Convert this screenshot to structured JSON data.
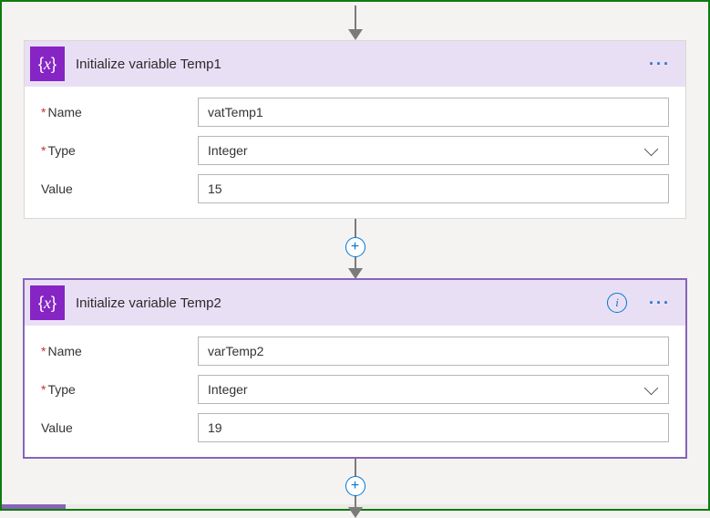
{
  "colors": {
    "header_bg": "#e9dff5",
    "icon_bg": "#8625c4",
    "selected_outline": "#8764b8",
    "canvas_bg": "#f4f3f2",
    "frame_border": "#0f7b0f",
    "accent": "#0078d4"
  },
  "cards": [
    {
      "title": "Initialize variable Temp1",
      "selected": false,
      "show_info": false,
      "fields": {
        "name": {
          "label": "Name",
          "required": true,
          "value": "vatTemp1"
        },
        "type": {
          "label": "Type",
          "required": true,
          "value": "Integer"
        },
        "value": {
          "label": "Value",
          "required": false,
          "value": "15"
        }
      }
    },
    {
      "title": "Initialize variable Temp2",
      "selected": true,
      "show_info": true,
      "fields": {
        "name": {
          "label": "Name",
          "required": true,
          "value": "varTemp2"
        },
        "type": {
          "label": "Type",
          "required": true,
          "value": "Integer"
        },
        "value": {
          "label": "Value",
          "required": false,
          "value": "19"
        }
      }
    }
  ],
  "icon_glyph": "{x}"
}
